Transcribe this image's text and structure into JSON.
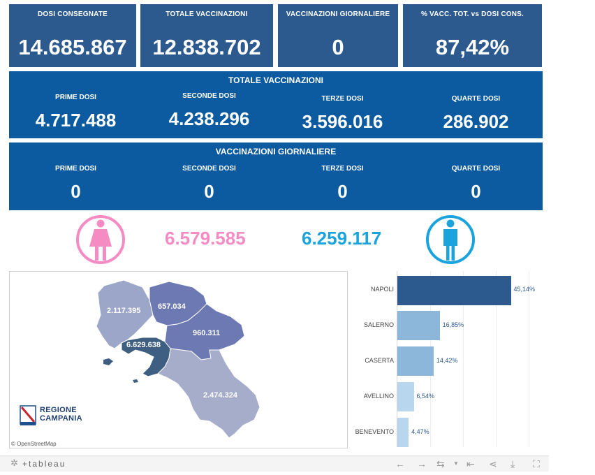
{
  "kpis": [
    {
      "label": "DOSI  CONSEGNATE",
      "value": "14.685.867"
    },
    {
      "label": "TOTALE VACCINAZIONI",
      "value": "12.838.702"
    },
    {
      "label": "VACCINAZIONI GIORNALIERE",
      "value": "0"
    },
    {
      "label": "% VACC. TOT. vs DOSI CONS.",
      "value": "87,42%"
    }
  ],
  "totale": {
    "title": "TOTALE VACCINAZIONI",
    "cols": [
      {
        "label": "PRIME DOSI",
        "value": "4.717.488"
      },
      {
        "label": "SECONDE DOSI",
        "value": "4.238.296"
      },
      {
        "label": "TERZE DOSI",
        "value": "3.596.016"
      },
      {
        "label": "QUARTE DOSI",
        "value": "286.902"
      }
    ]
  },
  "giornaliere": {
    "title": "VACCINAZIONI GIORNALIERE",
    "cols": [
      {
        "label": "PRIME DOSI",
        "value": "0"
      },
      {
        "label": "SECONDE DOSI",
        "value": "0"
      },
      {
        "label": "TERZE DOSI",
        "value": "0"
      },
      {
        "label": "QUARTE DOSI",
        "value": "0"
      }
    ]
  },
  "gender": {
    "female_value": "6.579.585",
    "male_value": "6.259.117",
    "female_color": "#f48cc3",
    "male_color": "#1aa3dc"
  },
  "map": {
    "labels": {
      "caserta": "2.117.395",
      "benevento": "657.034",
      "avellino": "960.311",
      "napoli": "6.629.638",
      "salerno": "2.474.324"
    },
    "logo_line1": "REGIONE",
    "logo_line2": "CAMPANIA",
    "attribution": "© OpenStreetMap"
  },
  "chart_data": {
    "type": "bar",
    "orientation": "horizontal",
    "categories": [
      "NAPOLI",
      "SALERNO",
      "CASERTA",
      "AVELLINO",
      "BENEVENTO"
    ],
    "values": [
      45.14,
      16.85,
      14.42,
      6.54,
      4.47
    ],
    "value_labels": [
      "45,14%",
      "16,85%",
      "14,42%",
      "6,54%",
      "4,47%"
    ],
    "colors": [
      "#2d5a8e",
      "#8cb6da",
      "#8cb6da",
      "#b8d6ee",
      "#b8d6ee"
    ],
    "xlim": [
      0,
      50
    ],
    "grid": true
  },
  "toolbar": {
    "brand": "+tableau"
  }
}
